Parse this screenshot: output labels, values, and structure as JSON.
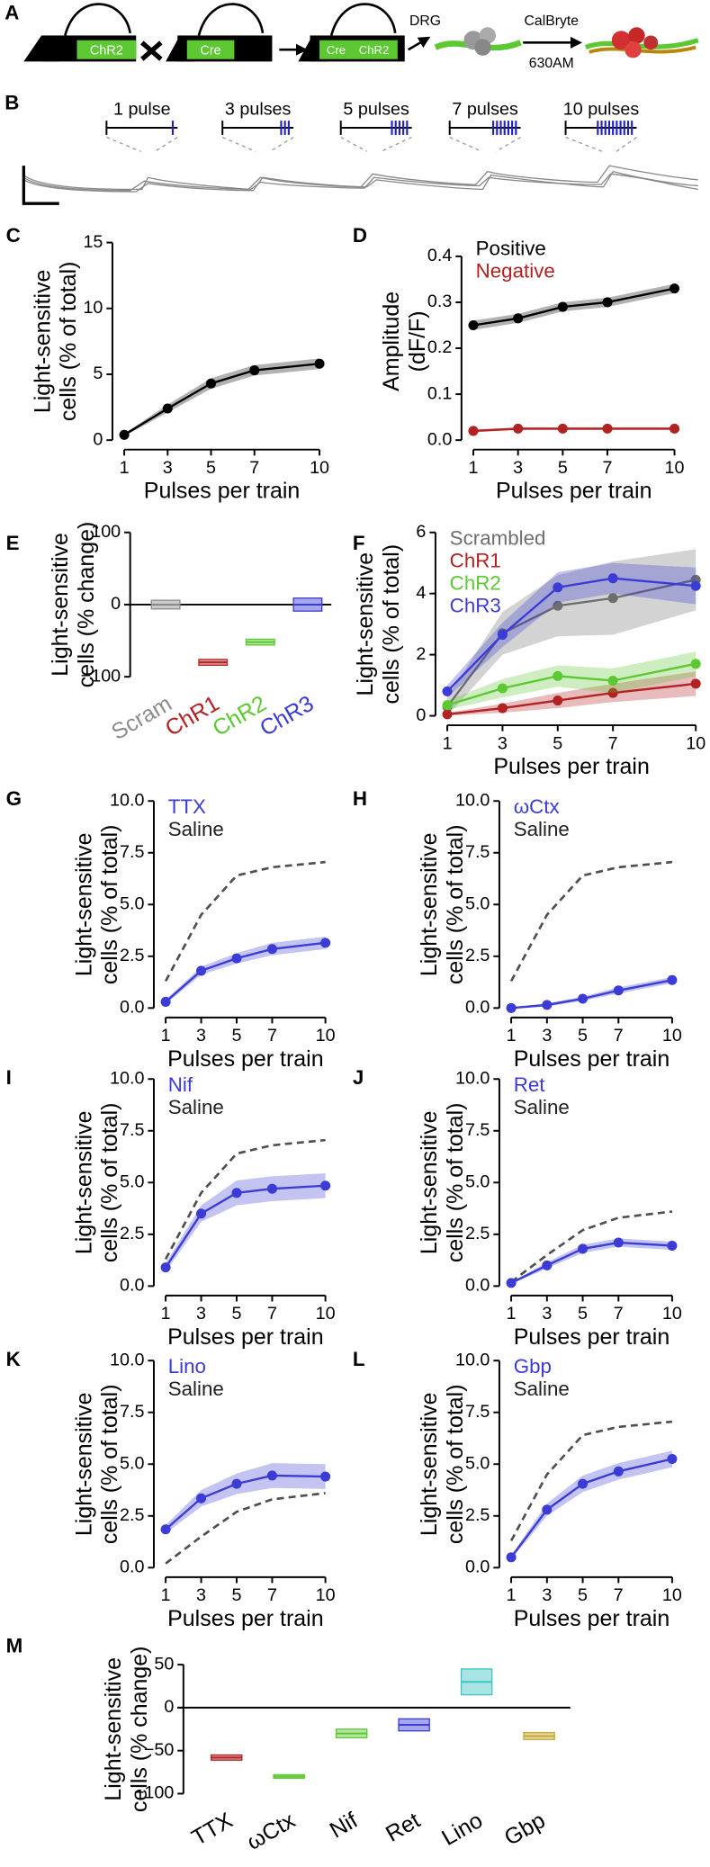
{
  "diagram_a": {
    "panel": "A",
    "labels": [
      "ChR2",
      "Cre",
      "Cre",
      "ChR2",
      "DRG",
      "CalBryte",
      "630AM"
    ]
  },
  "diagram_b": {
    "panel": "B",
    "pulse_labels": [
      "1 pulse",
      "3 pulses",
      "5 pulses",
      "7 pulses",
      "10 pulses"
    ],
    "pulses": [
      1,
      3,
      5,
      7,
      10
    ]
  },
  "chart_data": [
    {
      "type": "line",
      "panel": "C",
      "ylabel": [
        "Light-sensitive",
        "cells (% of total)"
      ],
      "xlabel": "Pulses per train",
      "x": [
        1,
        3,
        5,
        7,
        10
      ],
      "xlim": [
        1,
        10
      ],
      "xticks": [
        1,
        3,
        5,
        7,
        10
      ],
      "ylim": [
        0,
        15
      ],
      "yticks": [
        0,
        5,
        10,
        15
      ],
      "series": [
        {
          "color": "#000000",
          "values": [
            0.4,
            2.4,
            4.3,
            5.3,
            5.8
          ],
          "errors": [
            0.1,
            0.3,
            0.4,
            0.4,
            0.4
          ],
          "markers": true
        }
      ]
    },
    {
      "type": "line",
      "panel": "D",
      "ylabel": [
        "Amplitude",
        "(dF/F)"
      ],
      "xlabel": "Pulses per train",
      "x": [
        1,
        3,
        5,
        7,
        10
      ],
      "xlim": [
        1,
        10
      ],
      "xticks": [
        1,
        3,
        5,
        7,
        10
      ],
      "ylim": [
        0,
        0.43
      ],
      "yticks": [
        {
          "value": 0,
          "label": "0.0"
        },
        0.1,
        0.2,
        0.3,
        0.4
      ],
      "series": [
        {
          "name": "Positive",
          "color": "#000000",
          "values": [
            0.25,
            0.265,
            0.29,
            0.3,
            0.33
          ],
          "errors": [
            0.01,
            0.01,
            0.01,
            0.01,
            0.01
          ],
          "markers": true
        },
        {
          "name": "Negative",
          "color": "#b22222",
          "values": [
            0.02,
            0.025,
            0.025,
            0.025,
            0.025
          ],
          "errors": [
            0.003,
            0.003,
            0.003,
            0.003,
            0.003
          ],
          "markers": true
        }
      ]
    },
    {
      "type": "floating-bar",
      "panel": "E",
      "ylabel": [
        "Light-sensitive",
        "cells (% change)"
      ],
      "categories": [
        "Scram",
        "ChR1",
        "ChR2",
        "ChR3"
      ],
      "colors": [
        "#8c8c8c",
        "#b22222",
        "#5cc832",
        "#3b3bd6"
      ],
      "colored_labels": true,
      "values": [
        0,
        -80,
        -52,
        0
      ],
      "errors": [
        6,
        4,
        4,
        9
      ],
      "zero_line": true,
      "ylim": [
        -100,
        100
      ],
      "yticks": [
        {
          "value": -100,
          "label": "−100"
        },
        0,
        100
      ]
    },
    {
      "type": "line",
      "panel": "F",
      "ylabel": [
        "Light-sensitive",
        "cells (% of total)"
      ],
      "xlabel": "Pulses per train",
      "x": [
        1,
        3,
        5,
        7,
        10
      ],
      "xlim": [
        1,
        10
      ],
      "xticks": [
        1,
        3,
        5,
        7,
        10
      ],
      "ylim": [
        0,
        6
      ],
      "yticks": [
        0,
        2,
        4,
        6
      ],
      "series": [
        {
          "name": "Scrambled",
          "color": "#6e6e6e",
          "values": [
            0.3,
            2.7,
            3.6,
            3.85,
            4.45
          ],
          "errors": [
            0.3,
            0.7,
            1.0,
            1.2,
            1.0
          ],
          "markers": true
        },
        {
          "name": "ChR1",
          "color": "#b22222",
          "values": [
            0.05,
            0.25,
            0.5,
            0.75,
            1.05
          ],
          "errors": [
            0.05,
            0.15,
            0.25,
            0.3,
            0.4
          ],
          "markers": true
        },
        {
          "name": "ChR2",
          "color": "#5cc832",
          "values": [
            0.35,
            0.9,
            1.3,
            1.15,
            1.7
          ],
          "errors": [
            0.15,
            0.3,
            0.35,
            0.4,
            0.4
          ],
          "markers": true
        },
        {
          "name": "ChR3",
          "color": "#3b3bd6",
          "values": [
            0.8,
            2.65,
            4.2,
            4.5,
            4.25
          ],
          "errors": [
            0.2,
            0.4,
            0.5,
            0.5,
            0.6
          ],
          "markers": true
        }
      ]
    },
    {
      "type": "line",
      "panel": "G",
      "ylabel": [
        "Light-sensitive",
        "cells (% of total)"
      ],
      "xlabel": "Pulses per train",
      "x": [
        1,
        3,
        5,
        7,
        10
      ],
      "xlim": [
        1,
        10
      ],
      "xticks": [
        1,
        3,
        5,
        7,
        10
      ],
      "ylim": [
        0,
        10
      ],
      "yticks": [
        {
          "value": 0,
          "label": "0.0"
        },
        2.5,
        {
          "value": 5,
          "label": "5.0"
        },
        7.5,
        {
          "value": 10,
          "label": "10.0"
        }
      ],
      "series": [
        {
          "name": "TTX",
          "color": "#3b3bd6",
          "values": [
            0.3,
            1.8,
            2.4,
            2.85,
            3.15
          ],
          "errors": [
            0.1,
            0.2,
            0.25,
            0.3,
            0.3
          ],
          "markers": true
        },
        {
          "name": "Saline",
          "color": "#222222",
          "dashed": true,
          "values": [
            1.3,
            4.5,
            6.4,
            6.8,
            7.05
          ]
        }
      ]
    },
    {
      "type": "line",
      "panel": "H",
      "ylabel": [
        "Light-sensitive",
        "cells (% of total)"
      ],
      "xlabel": "Pulses per train",
      "x": [
        1,
        3,
        5,
        7,
        10
      ],
      "xlim": [
        1,
        10
      ],
      "xticks": [
        1,
        3,
        5,
        7,
        10
      ],
      "ylim": [
        0,
        10
      ],
      "yticks": [
        {
          "value": 0,
          "label": "0.0"
        },
        2.5,
        {
          "value": 5,
          "label": "5.0"
        },
        7.5,
        {
          "value": 10,
          "label": "10.0"
        }
      ],
      "series": [
        {
          "name": "ωCtx",
          "color": "#3b3bd6",
          "values": [
            0,
            0.15,
            0.45,
            0.85,
            1.35
          ],
          "errors": [
            0.03,
            0.08,
            0.1,
            0.15,
            0.15
          ],
          "markers": true
        },
        {
          "name": "Saline",
          "color": "#222222",
          "dashed": true,
          "values": [
            1.3,
            4.5,
            6.4,
            6.8,
            7.05
          ]
        }
      ]
    },
    {
      "type": "line",
      "panel": "I",
      "ylabel": [
        "Light-sensitive",
        "cells (% of total)"
      ],
      "xlabel": "Pulses per train",
      "x": [
        1,
        3,
        5,
        7,
        10
      ],
      "xlim": [
        1,
        10
      ],
      "xticks": [
        1,
        3,
        5,
        7,
        10
      ],
      "ylim": [
        0,
        10
      ],
      "yticks": [
        {
          "value": 0,
          "label": "0.0"
        },
        2.5,
        {
          "value": 5,
          "label": "5.0"
        },
        7.5,
        {
          "value": 10,
          "label": "10.0"
        }
      ],
      "series": [
        {
          "name": "Nif",
          "color": "#3b3bd6",
          "values": [
            0.9,
            3.5,
            4.5,
            4.7,
            4.85
          ],
          "errors": [
            0.2,
            0.4,
            0.6,
            0.6,
            0.6
          ],
          "markers": true
        },
        {
          "name": "Saline",
          "color": "#222222",
          "dashed": true,
          "values": [
            1.3,
            4.5,
            6.4,
            6.8,
            7.05
          ]
        }
      ]
    },
    {
      "type": "line",
      "panel": "J",
      "ylabel": [
        "Light-sensitive",
        "cells (% of total)"
      ],
      "xlabel": "Pulses per train",
      "x": [
        1,
        3,
        5,
        7,
        10
      ],
      "xlim": [
        1,
        10
      ],
      "xticks": [
        1,
        3,
        5,
        7,
        10
      ],
      "ylim": [
        0,
        10
      ],
      "yticks": [
        {
          "value": 0,
          "label": "0.0"
        },
        2.5,
        {
          "value": 5,
          "label": "5.0"
        },
        7.5,
        {
          "value": 10,
          "label": "10.0"
        }
      ],
      "series": [
        {
          "name": "Ret",
          "color": "#3b3bd6",
          "values": [
            0.15,
            1.0,
            1.8,
            2.1,
            1.95
          ],
          "errors": [
            0.05,
            0.15,
            0.2,
            0.2,
            0.2
          ],
          "markers": true
        },
        {
          "name": "Saline",
          "color": "#222222",
          "dashed": true,
          "values": [
            0.2,
            1.5,
            2.7,
            3.3,
            3.6
          ]
        }
      ]
    },
    {
      "type": "line",
      "panel": "K",
      "ylabel": [
        "Light-sensitive",
        "cells (% of total)"
      ],
      "xlabel": "Pulses per train",
      "x": [
        1,
        3,
        5,
        7,
        10
      ],
      "xlim": [
        1,
        10
      ],
      "xticks": [
        1,
        3,
        5,
        7,
        10
      ],
      "ylim": [
        0,
        10
      ],
      "yticks": [
        {
          "value": 0,
          "label": "0.0"
        },
        2.5,
        {
          "value": 5,
          "label": "5.0"
        },
        7.5,
        {
          "value": 10,
          "label": "10.0"
        }
      ],
      "series": [
        {
          "name": "Lino",
          "color": "#3b3bd6",
          "values": [
            1.85,
            3.35,
            4.05,
            4.45,
            4.4
          ],
          "errors": [
            0.2,
            0.4,
            0.5,
            0.6,
            0.6
          ],
          "markers": true
        },
        {
          "name": "Saline",
          "color": "#222222",
          "dashed": true,
          "values": [
            0.2,
            1.5,
            2.7,
            3.3,
            3.6
          ]
        }
      ]
    },
    {
      "type": "line",
      "panel": "L",
      "ylabel": [
        "Light-sensitive",
        "cells (% of total)"
      ],
      "xlabel": "Pulses per train",
      "x": [
        1,
        3,
        5,
        7,
        10
      ],
      "xlim": [
        1,
        10
      ],
      "xticks": [
        1,
        3,
        5,
        7,
        10
      ],
      "ylim": [
        0,
        10
      ],
      "yticks": [
        {
          "value": 0,
          "label": "0.0"
        },
        2.5,
        {
          "value": 5,
          "label": "5.0"
        },
        7.5,
        {
          "value": 10,
          "label": "10.0"
        }
      ],
      "series": [
        {
          "name": "Gbp",
          "color": "#3b3bd6",
          "values": [
            0.5,
            2.8,
            4.05,
            4.65,
            5.25
          ],
          "errors": [
            0.1,
            0.3,
            0.4,
            0.4,
            0.4
          ],
          "markers": true
        },
        {
          "name": "Saline",
          "color": "#222222",
          "dashed": true,
          "values": [
            1.3,
            4.5,
            6.4,
            6.8,
            7.05
          ]
        }
      ]
    },
    {
      "type": "floating-bar",
      "panel": "M",
      "ylabel": [
        "Light-sensitive",
        "cells (% change)"
      ],
      "categories": [
        "TTX",
        "ωCtx",
        "Nif",
        "Ret",
        "Lino",
        "Gbp"
      ],
      "colors": [
        "#b22222",
        "#5cc832",
        "#5cc832",
        "#3b3bd6",
        "#3fc4c4",
        "#c8a832"
      ],
      "colored_labels": false,
      "values": [
        -58,
        -80,
        -30,
        -20,
        30,
        -33
      ],
      "errors": [
        3,
        2,
        5,
        7,
        15,
        4
      ],
      "zero_line": true,
      "ylim": [
        -100,
        50
      ],
      "yticks": [
        {
          "value": -100,
          "label": "−100"
        },
        {
          "value": -50,
          "label": "−50"
        },
        0,
        50
      ]
    }
  ]
}
